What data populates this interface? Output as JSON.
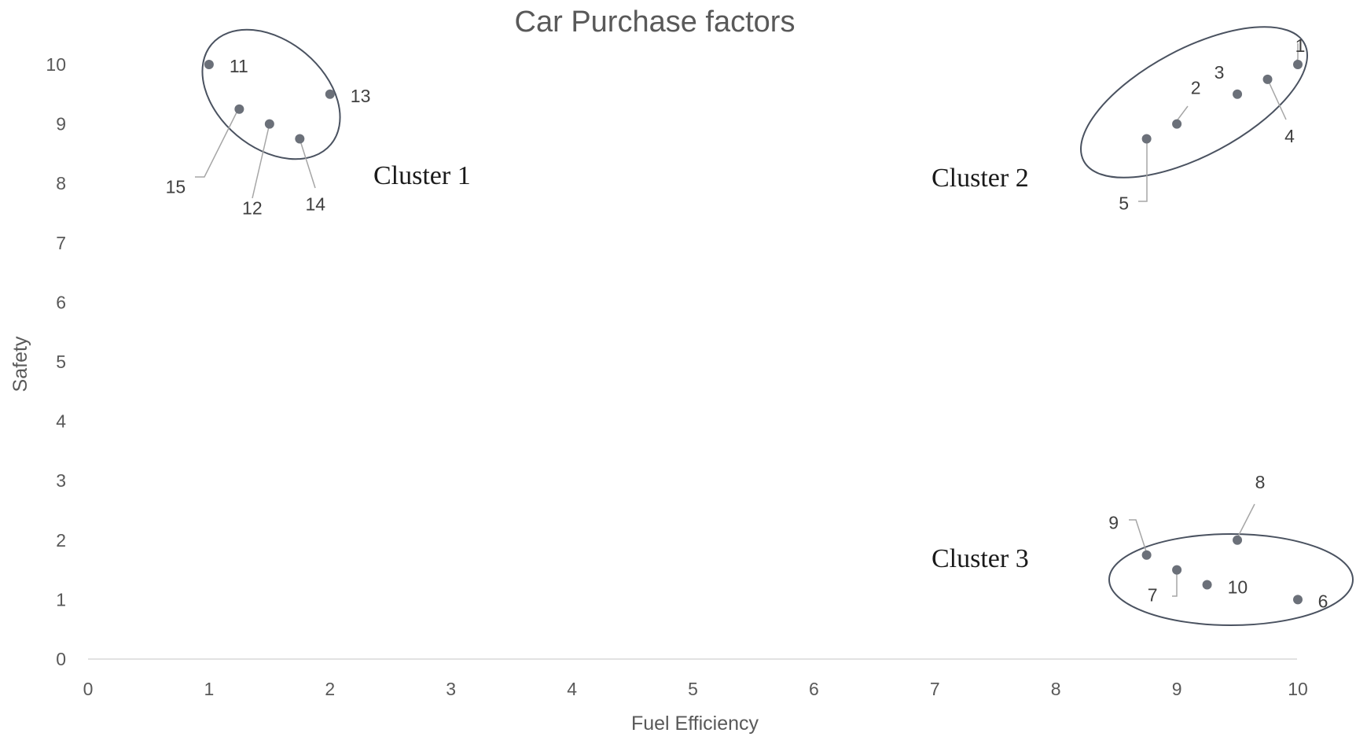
{
  "chart_data": {
    "type": "scatter",
    "title": "Car Purchase factors",
    "xlabel": "Fuel Efficiency",
    "ylabel": "Safety",
    "xlim": [
      0,
      10
    ],
    "ylim": [
      0,
      10
    ],
    "xticks": [
      "0",
      "1",
      "2",
      "3",
      "4",
      "5",
      "6",
      "7",
      "8",
      "9",
      "10"
    ],
    "yticks": [
      "0",
      "1",
      "2",
      "3",
      "4",
      "5",
      "6",
      "7",
      "8",
      "9",
      "10"
    ],
    "grid": false,
    "point_color": "#6b7079",
    "points": [
      {
        "label": "1",
        "x": 10,
        "y": 10
      },
      {
        "label": "2",
        "x": 9,
        "y": 9
      },
      {
        "label": "3",
        "x": 9.5,
        "y": 9.5
      },
      {
        "label": "4",
        "x": 9.75,
        "y": 9.75
      },
      {
        "label": "5",
        "x": 8.75,
        "y": 8.75
      },
      {
        "label": "6",
        "x": 10,
        "y": 1
      },
      {
        "label": "7",
        "x": 9,
        "y": 1.5
      },
      {
        "label": "8",
        "x": 9.5,
        "y": 2
      },
      {
        "label": "9",
        "x": 8.75,
        "y": 1.75
      },
      {
        "label": "10",
        "x": 9.25,
        "y": 1.25
      },
      {
        "label": "11",
        "x": 1,
        "y": 10
      },
      {
        "label": "12",
        "x": 1.5,
        "y": 9
      },
      {
        "label": "13",
        "x": 2,
        "y": 9.5
      },
      {
        "label": "14",
        "x": 1.75,
        "y": 8.75
      },
      {
        "label": "15",
        "x": 1.25,
        "y": 9.25
      }
    ],
    "clusters": [
      {
        "name": "Cluster 1",
        "members": [
          "11",
          "12",
          "13",
          "14",
          "15"
        ]
      },
      {
        "name": "Cluster 2",
        "members": [
          "1",
          "2",
          "3",
          "4",
          "5"
        ]
      },
      {
        "name": "Cluster 3",
        "members": [
          "6",
          "7",
          "8",
          "9",
          "10"
        ]
      }
    ]
  }
}
